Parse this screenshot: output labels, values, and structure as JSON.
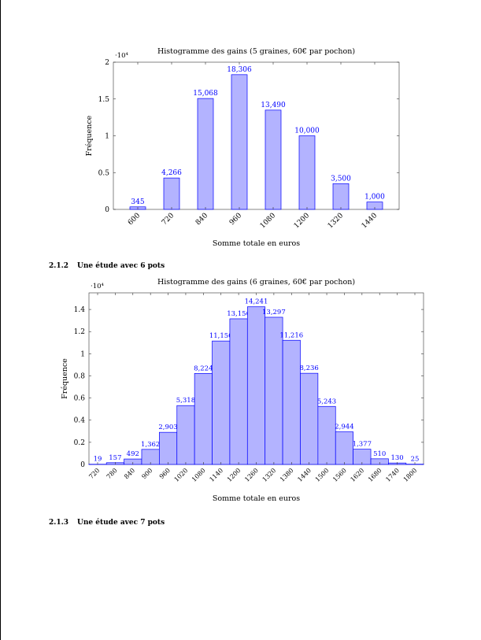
{
  "sections": {
    "s212": {
      "number": "2.1.2",
      "title": "Une étude avec 6 pots"
    },
    "s213": {
      "number": "2.1.3",
      "title": "Une étude avec 7 pots"
    }
  },
  "colors": {
    "bar_fill": "#b3b3ff",
    "bar_stroke": "#0000ff",
    "label": "#0000ff"
  },
  "chart_data": [
    {
      "type": "bar",
      "title": "Histogramme des gains (5 graines, 60€ par pochon)",
      "xlabel": "Somme totale en euros",
      "ylabel": "Fréquence",
      "scale_label": "·10⁴",
      "categories": [
        "600",
        "720",
        "840",
        "960",
        "1080",
        "1200",
        "1320",
        "1440"
      ],
      "values": [
        345,
        4266,
        15068,
        18306,
        13490,
        10000,
        3500,
        1000
      ],
      "value_labels": [
        "345",
        "4,266",
        "15,068",
        "18,306",
        "13,490",
        "10,000",
        "3,500",
        "1,000"
      ],
      "yticks": [
        "0",
        "0.5",
        "1",
        "1.5",
        "2"
      ],
      "ytick_values": [
        0,
        0.5,
        1,
        1.5,
        2
      ],
      "ylim": [
        0,
        2
      ],
      "grid": false
    },
    {
      "type": "bar",
      "title": "Histogramme des gains (6 graines, 60€ par pochon)",
      "xlabel": "Somme totale en euros",
      "ylabel": "Fréquence",
      "scale_label": "·10⁴",
      "categories": [
        "720",
        "780",
        "840",
        "900",
        "960",
        "1020",
        "1080",
        "1140",
        "1200",
        "1260",
        "1320",
        "1380",
        "1440",
        "1500",
        "1560",
        "1620",
        "1680",
        "1740",
        "1800"
      ],
      "values": [
        19,
        157,
        492,
        1362,
        2903,
        5318,
        8224,
        11150,
        13156,
        14241,
        13297,
        11216,
        8236,
        5243,
        2944,
        1377,
        510,
        130,
        25
      ],
      "value_labels": [
        "19",
        "157",
        "492",
        "1,362",
        "2,903",
        "5,318",
        "8,224",
        "11,150",
        "13,156",
        "14,241",
        "13,297",
        "11,216",
        "8,236",
        "5,243",
        "2,944",
        "1,377",
        "510",
        "130",
        "25"
      ],
      "yticks": [
        "0",
        "0.2",
        "0.4",
        "0.6",
        "0.8",
        "1",
        "1.2",
        "1.4"
      ],
      "ytick_values": [
        0,
        0.2,
        0.4,
        0.6,
        0.8,
        1,
        1.2,
        1.4
      ],
      "ylim": [
        0,
        1.55
      ],
      "grid": false
    }
  ]
}
